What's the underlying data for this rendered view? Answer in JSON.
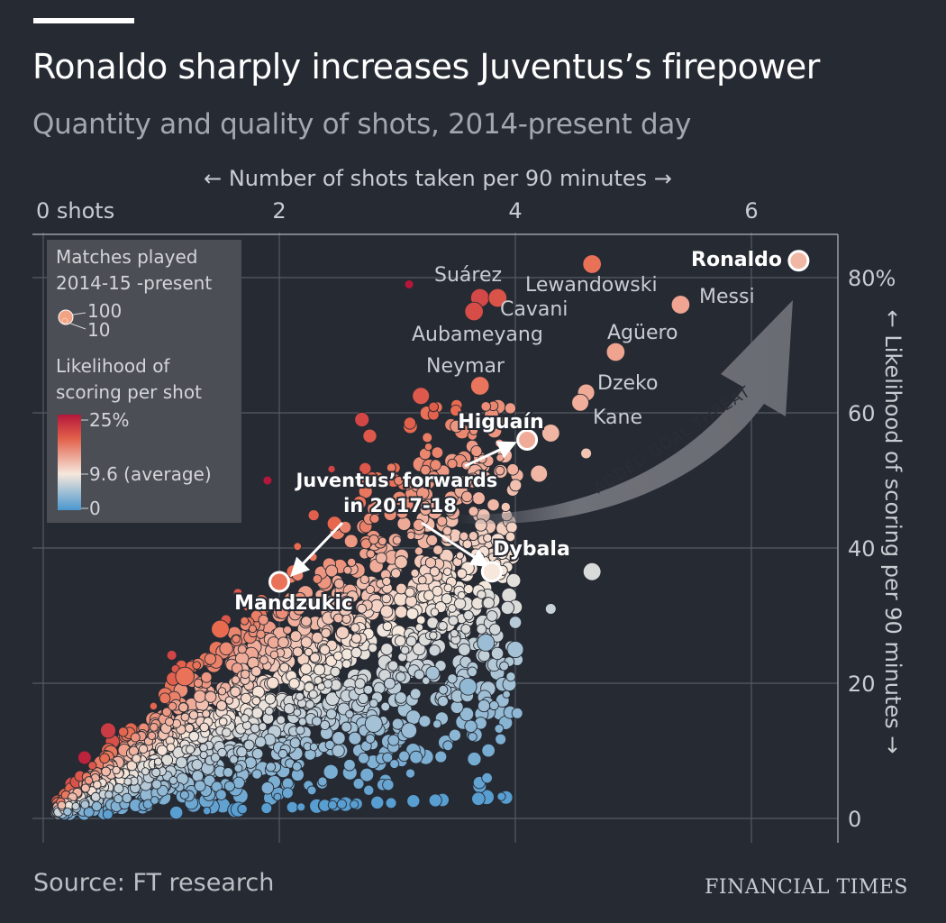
{
  "header": {
    "title": "Ronaldo sharply increases Juventus’s firepower",
    "subtitle": "Quantity and quality of shots, 2014-present day"
  },
  "footer": {
    "source": "Source: FT research",
    "brand": "FINANCIAL TIMES"
  },
  "colors": {
    "background": "#262a33",
    "panel": "#4b4e55",
    "grid": "#555a63",
    "high": "#b5173a",
    "avg": "#f6e8dc",
    "low": "#4a97cf"
  },
  "chart_data": {
    "type": "scatter",
    "title": "Ronaldo sharply increases Juventus’s firepower",
    "subtitle": "Quantity and quality of shots, 2014-present day",
    "xlabel": "← Number of shots taken per 90 minutes →",
    "ylabel": "← Likelihood of scoring per 90 minutes →",
    "x_ticks": [
      "0 shots",
      "2",
      "4",
      "6"
    ],
    "y_ticks": [
      "0",
      "20",
      "40",
      "60",
      "80%"
    ],
    "xlim": [
      0,
      6.9
    ],
    "ylim": [
      0,
      82.5
    ],
    "grid": true,
    "legend": {
      "placement": "top-left",
      "size_title": "Matches played\n2014-15 -present",
      "size_values": [
        "100",
        "10"
      ],
      "color_title": "Likelihood of\nscoring per shot",
      "color_stops": [
        "25%",
        "9.6 (average)",
        "0"
      ]
    },
    "arrow_label": "ADDED GOAL THREAT",
    "juventus_label": "Juventus’ forwards\nin 2017-18",
    "highlighted": [
      {
        "name": "Ronaldo",
        "x": 6.4,
        "y": 82.5,
        "rate": 12.9,
        "size": 100
      },
      {
        "name": "Higuaín",
        "x": 4.1,
        "y": 56,
        "rate": 13.7,
        "size": 95
      },
      {
        "name": "Dybala",
        "x": 3.8,
        "y": 36.5,
        "rate": 9.6,
        "size": 95
      },
      {
        "name": "Mandzukic",
        "x": 2.0,
        "y": 35,
        "rate": 17.5,
        "size": 90
      }
    ],
    "labeled": [
      {
        "name": "Suárez",
        "x": 3.7,
        "y": 77,
        "rate": 20.8,
        "size": 100
      },
      {
        "name": "Lewandowski",
        "x": 4.65,
        "y": 82,
        "rate": 17.6,
        "size": 100
      },
      {
        "name": "Cavani",
        "x": 3.85,
        "y": 77,
        "rate": 20.0,
        "size": 100
      },
      {
        "name": "Messi",
        "x": 5.4,
        "y": 76,
        "rate": 14.1,
        "size": 100
      },
      {
        "name": "Aubameyang",
        "x": 3.65,
        "y": 75,
        "rate": 20.5,
        "size": 100
      },
      {
        "name": "Agüero",
        "x": 4.85,
        "y": 69,
        "rate": 14.2,
        "size": 100
      },
      {
        "name": "Neymar",
        "x": 3.7,
        "y": 64,
        "rate": 17.3,
        "size": 100
      },
      {
        "name": "Dzeko",
        "x": 4.6,
        "y": 63,
        "rate": 13.7,
        "size": 80
      },
      {
        "name": "Kane",
        "x": 4.55,
        "y": 61.5,
        "rate": 13.5,
        "size": 80
      }
    ],
    "others": [
      {
        "x": 3.1,
        "y": 79,
        "rate": 25,
        "size": 10
      },
      {
        "x": 1.9,
        "y": 50,
        "rate": 25,
        "size": 10
      },
      {
        "x": 3.2,
        "y": 62.5,
        "rate": 19.5,
        "size": 80
      },
      {
        "x": 2.7,
        "y": 59,
        "rate": 21,
        "size": 50
      },
      {
        "x": 4.3,
        "y": 57,
        "rate": 13,
        "size": 90
      },
      {
        "x": 3.5,
        "y": 58,
        "rate": 15,
        "size": 30
      },
      {
        "x": 4.6,
        "y": 54,
        "rate": 12,
        "size": 20
      },
      {
        "x": 4.2,
        "y": 51,
        "rate": 13,
        "size": 80
      },
      {
        "x": 4.65,
        "y": 36.5,
        "rate": 8,
        "size": 90
      },
      {
        "x": 4.3,
        "y": 31,
        "rate": 7,
        "size": 20
      },
      {
        "x": 4.0,
        "y": 29,
        "rate": 6,
        "size": 30
      },
      {
        "x": 3.75,
        "y": 26,
        "rate": 4.5,
        "size": 80
      },
      {
        "x": 4.0,
        "y": 25,
        "rate": 5,
        "size": 70
      },
      {
        "x": 3.6,
        "y": 19.5,
        "rate": 4,
        "size": 80
      },
      {
        "x": 3.3,
        "y": 21.5,
        "rate": 5,
        "size": 40
      },
      {
        "x": 1.2,
        "y": 21,
        "rate": 17.5,
        "size": 100
      },
      {
        "x": 1.5,
        "y": 28,
        "rate": 18,
        "size": 90
      },
      {
        "x": 0.55,
        "y": 13,
        "rate": 22,
        "size": 60
      },
      {
        "x": 0.35,
        "y": 9,
        "rate": 24,
        "size": 40
      },
      {
        "x": 2.8,
        "y": 14,
        "rate": 5,
        "size": 80
      },
      {
        "x": 3.1,
        "y": 13,
        "rate": 4.5,
        "size": 60
      },
      {
        "x": 2.5,
        "y": 10,
        "rate": 5,
        "size": 30
      },
      {
        "x": 1.9,
        "y": 4.5,
        "rate": 3,
        "size": 30
      }
    ]
  }
}
